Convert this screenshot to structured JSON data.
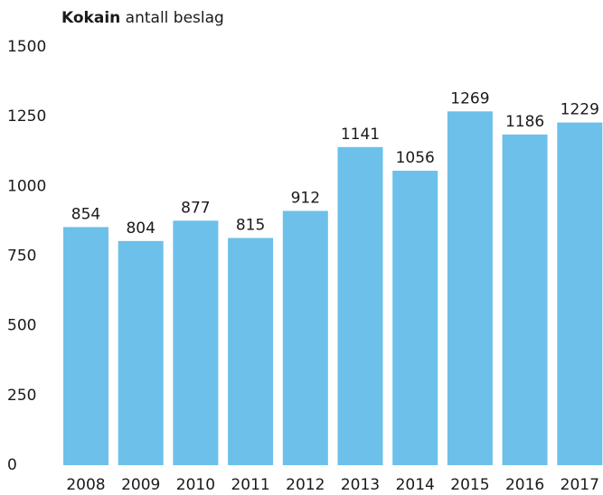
{
  "chart_data": {
    "type": "bar",
    "title": "Kokain",
    "subtitle": "antall beslag",
    "categories": [
      "2008",
      "2009",
      "2010",
      "2011",
      "2012",
      "2013",
      "2014",
      "2015",
      "2016",
      "2017"
    ],
    "values": [
      854,
      804,
      877,
      815,
      912,
      1141,
      1056,
      1269,
      1186,
      1229
    ],
    "color": "#6cc0ea",
    "ylim": [
      0,
      1500
    ],
    "yticks": [
      0,
      250,
      500,
      750,
      1000,
      1250,
      1500
    ],
    "grid": false
  }
}
